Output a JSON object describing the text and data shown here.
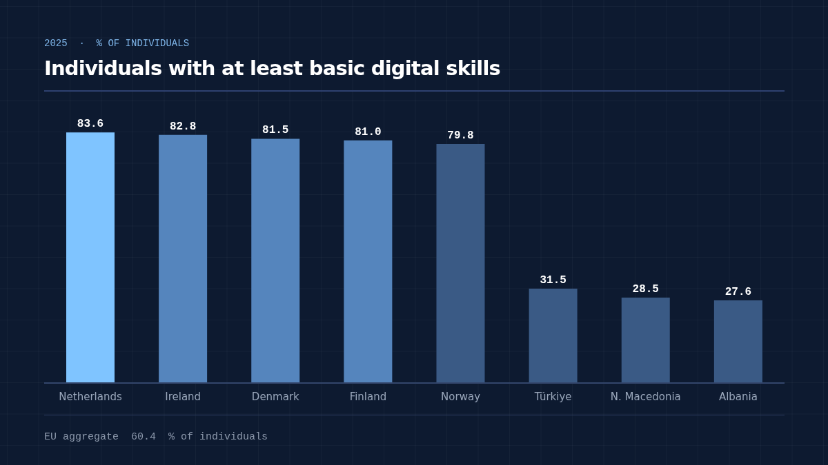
{
  "chart_data": {
    "type": "bar",
    "title": "Individuals with at least basic digital skills",
    "subtitle": "2025  ·  % OF INDIVIDUALS",
    "categories": [
      "Netherlands",
      "Ireland",
      "Denmark",
      "Finland",
      "Norway",
      "Türkiye",
      "N. Macedonia",
      "Albania"
    ],
    "values": [
      83.6,
      82.8,
      81.5,
      81.0,
      79.8,
      31.5,
      28.5,
      27.6
    ],
    "colors": [
      "#7fc4ff",
      "#5585bd",
      "#5585bd",
      "#5585bd",
      "#3a5a85",
      "#3a5a85",
      "#3a5a85",
      "#3a5a85"
    ],
    "value_labels": [
      "83.6",
      "82.8",
      "81.5",
      "81.0",
      "79.8",
      "31.5",
      "28.5",
      "27.6"
    ],
    "annotations": [
      "EU aggregate  60.4  % of individuals"
    ]
  }
}
